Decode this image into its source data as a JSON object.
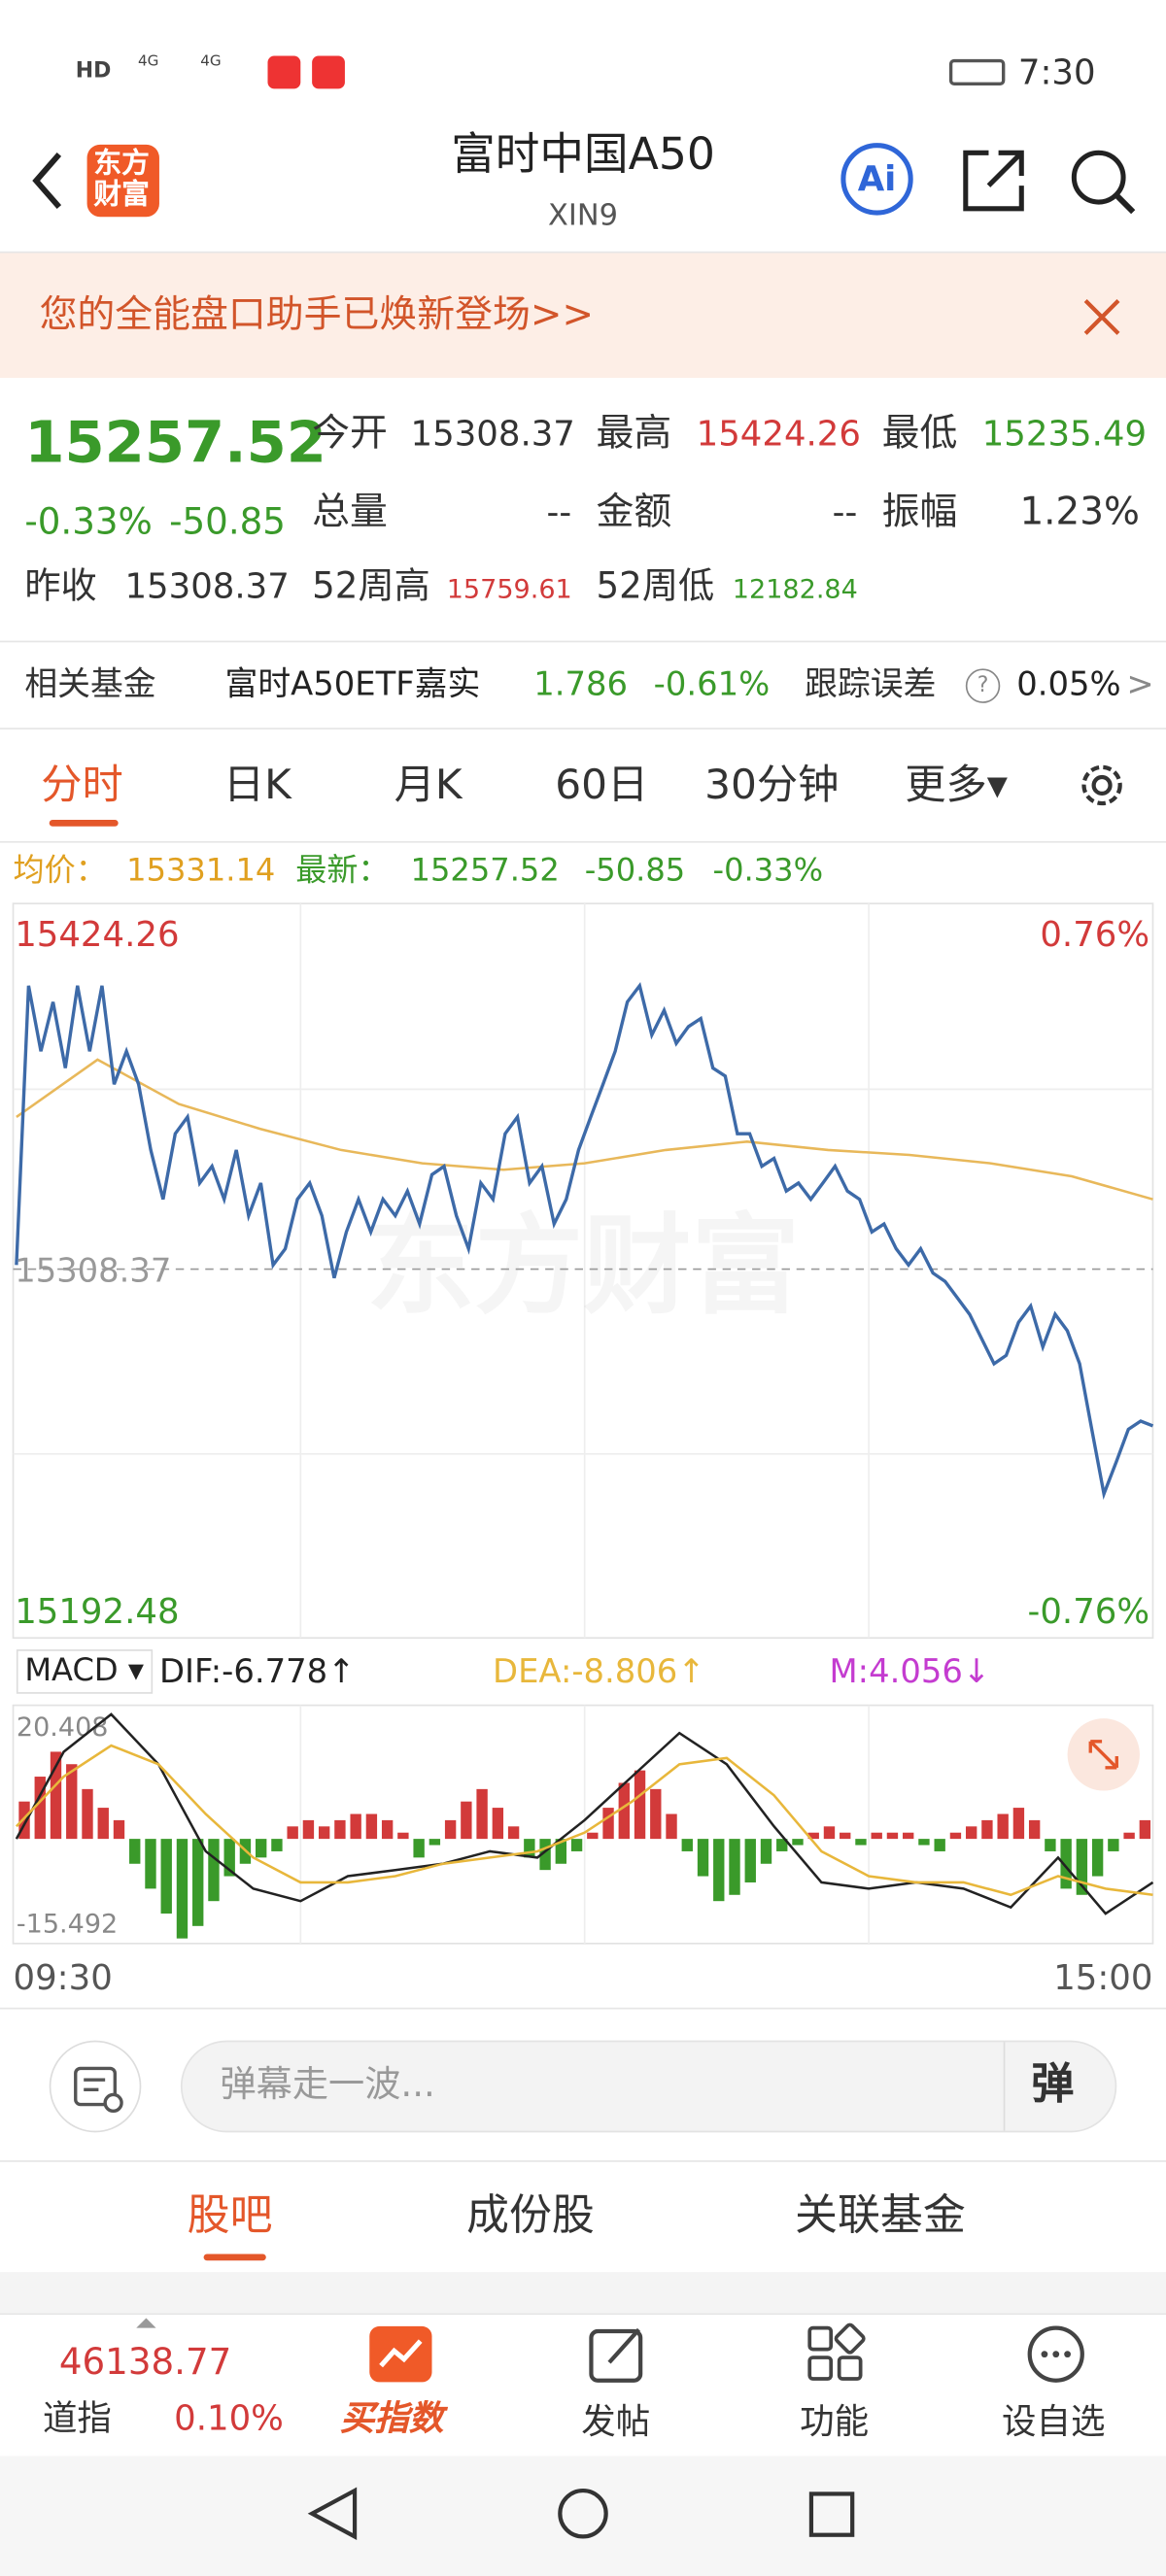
{
  "status_bar": {
    "hd": "HD",
    "net1": "4G",
    "net2": "4G",
    "time": "7:30"
  },
  "header": {
    "logo_top": "东方",
    "logo_bottom": "财富",
    "title": "富时中国A50",
    "code": "XIN9",
    "ai": "Ai"
  },
  "banner": {
    "text": "您的全能盘口助手已焕新登场>>"
  },
  "quote": {
    "price": "15257.52",
    "change_pct": "-0.33%",
    "change": "-50.85",
    "open_label": "今开",
    "open": "15308.37",
    "high_label": "最高",
    "high": "15424.26",
    "low_label": "最低",
    "low": "15235.49",
    "volume_label": "总量",
    "volume": "--",
    "amount_label": "金额",
    "amount": "--",
    "amplitude_label": "振幅",
    "amplitude": "1.23%",
    "prev_label": "昨收",
    "prev": "15308.37",
    "w52_high_label": "52周高",
    "w52_high": "15759.61",
    "w52_low_label": "52周低",
    "w52_low": "12182.84"
  },
  "fund_row": {
    "label": "相关基金",
    "fund": "富时A50ETF嘉实",
    "price": "1.786",
    "pct": "-0.61%",
    "error_label": "跟踪误差",
    "help": "?",
    "error": "0.05%",
    "more": ">"
  },
  "tabs": [
    "分时",
    "日K",
    "月K",
    "60日",
    "30分钟",
    "更多▾"
  ],
  "chart_data": [
    {
      "type": "line",
      "watermark": "东方财富",
      "legend": {
        "avg": "15331.14",
        "last": "15257.52",
        "change": "-50.85",
        "pct": "-0.33%"
      },
      "ylim": [
        15192.48,
        15424.26
      ],
      "yticks": [
        15424.26,
        15192.48
      ],
      "y2lim": [
        -0.76,
        0.76
      ],
      "y2ticks": [
        {
          "value": 0.76,
          "label": "0.76%"
        },
        {
          "value": -0.76,
          "label": "-0.76%"
        }
      ],
      "reference": {
        "value": 15308.37,
        "label": "15308.37"
      },
      "series": [
        {
          "name": "最新：",
          "color": "#3d6aa8",
          "values": [
            15309.7,
            15400.3,
            15379.0,
            15395.0,
            15373.6,
            15400.3,
            15379.0,
            15400.3,
            15368.3,
            15379.0,
            15368.3,
            15347.0,
            15331.0,
            15352.3,
            15357.7,
            15336.3,
            15341.7,
            15331.0,
            15347.0,
            15325.7,
            15336.3,
            15309.7,
            15315.0,
            15331.0,
            15336.3,
            15325.7,
            15305.5,
            15320.4,
            15331.0,
            15320.4,
            15331.0,
            15325.7,
            15333.7,
            15323.0,
            15339.0,
            15341.7,
            15325.7,
            15315.0,
            15336.3,
            15331.0,
            15352.3,
            15357.7,
            15336.3,
            15341.7,
            15323.0,
            15331.0,
            15347.0,
            15357.7,
            15368.3,
            15379.0,
            15395.0,
            15400.3,
            15384.3,
            15392.3,
            15381.6,
            15387.0,
            15389.6,
            15373.6,
            15371.0,
            15352.3,
            15352.3,
            15341.7,
            15344.3,
            15333.7,
            15336.3,
            15331.0,
            15336.3,
            15341.7,
            15333.7,
            15331.0,
            15320.4,
            15323.0,
            15315.0,
            15309.7,
            15315.0,
            15307.1,
            15304.4,
            15299.1,
            15293.7,
            15285.7,
            15277.7,
            15280.4,
            15291.1,
            15296.4,
            15283.1,
            15293.7,
            15288.4,
            15277.7,
            15256.4,
            15235.5,
            15245.8,
            15256.4,
            15259.1,
            15257.52
          ]
        },
        {
          "name": "均价：",
          "color": "#e8b85a",
          "values": [
            15357.7,
            15376.3,
            15361.9,
            15353.9,
            15347.0,
            15342.7,
            15340.6,
            15342.7,
            15347.0,
            15349.7,
            15347.0,
            15345.4,
            15342.7,
            15338.5,
            15331.0
          ]
        }
      ]
    },
    {
      "type": "bar",
      "title": "MACD ▾",
      "ylim": [
        -15.492,
        20.408
      ],
      "yticks": [
        20.408,
        -15.492
      ],
      "x_labels": [
        "09:30",
        "15:00"
      ],
      "up_color": "#d23a3a",
      "down_color": "#3a9a2a",
      "series": [
        {
          "name": "DIF:-6.778",
          "arrow": "↑",
          "color": "#222222",
          "values": [
            0,
            14,
            20,
            12,
            -2,
            -8,
            -10,
            -6,
            -5,
            -4,
            -2,
            -3,
            3,
            10,
            17,
            12,
            2,
            -7,
            -8,
            -7,
            -8,
            -11,
            -3,
            -12,
            -7
          ]
        },
        {
          "name": "DEA:-8.806",
          "arrow": "↑",
          "color": "#e8b73b",
          "values": [
            2,
            10,
            15,
            12,
            4,
            -3,
            -7,
            -7,
            -6,
            -4,
            -3,
            -2,
            1,
            6,
            12,
            13,
            7,
            -2,
            -6,
            -7,
            -7,
            -9,
            -6,
            -8,
            -9
          ]
        }
      ],
      "m": {
        "name": "M:4.056",
        "arrow": "↓",
        "color": "#c43cd0",
        "values": [
          6,
          10,
          14,
          12,
          8,
          5,
          3,
          -4,
          -8,
          -12,
          -16,
          -14,
          -10,
          -6,
          -4,
          -3,
          -2,
          2,
          3,
          2,
          3,
          4,
          4,
          3,
          1,
          -3,
          -1,
          3,
          6,
          8,
          5,
          2,
          -3,
          -5,
          -4,
          -2,
          1,
          5,
          9,
          11,
          8,
          4,
          -2,
          -6,
          -10,
          -9,
          -7,
          -4,
          -2,
          -1,
          1,
          2,
          1,
          -1,
          1,
          1,
          1,
          -1,
          -2,
          1,
          2,
          3,
          4,
          5,
          3,
          -2,
          -8,
          -9,
          -6,
          -2,
          1,
          3
        ]
      }
    }
  ],
  "danmu": {
    "placeholder": "弹幕走一波...",
    "button": "弹"
  },
  "sub_tabs": [
    "股吧",
    "成份股",
    "关联基金"
  ],
  "bottom_nav": {
    "index_value": "46138.77",
    "index_name": "道指",
    "index_pct": "0.10%",
    "items": [
      "买指数",
      "发帖",
      "功能",
      "设自选"
    ]
  }
}
